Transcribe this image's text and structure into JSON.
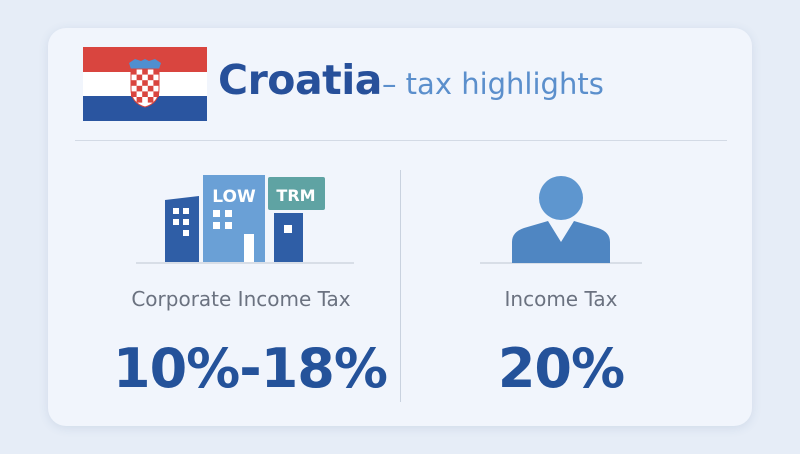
{
  "header": {
    "country": "Croatia",
    "subtitle": "– tax highlights",
    "flag_icon": "croatia-flag"
  },
  "colors": {
    "brand_blue": "#27509a",
    "accent_blue": "#5b8fcc",
    "teal": "#5fa3a3"
  },
  "sections": [
    {
      "icon": "office-buildings-icon",
      "badges": [
        "LOW",
        "TRM"
      ],
      "label": "Corporate Income Tax",
      "value": "10%-18%"
    },
    {
      "icon": "person-icon",
      "label": "Income Tax",
      "value": "20%"
    }
  ]
}
